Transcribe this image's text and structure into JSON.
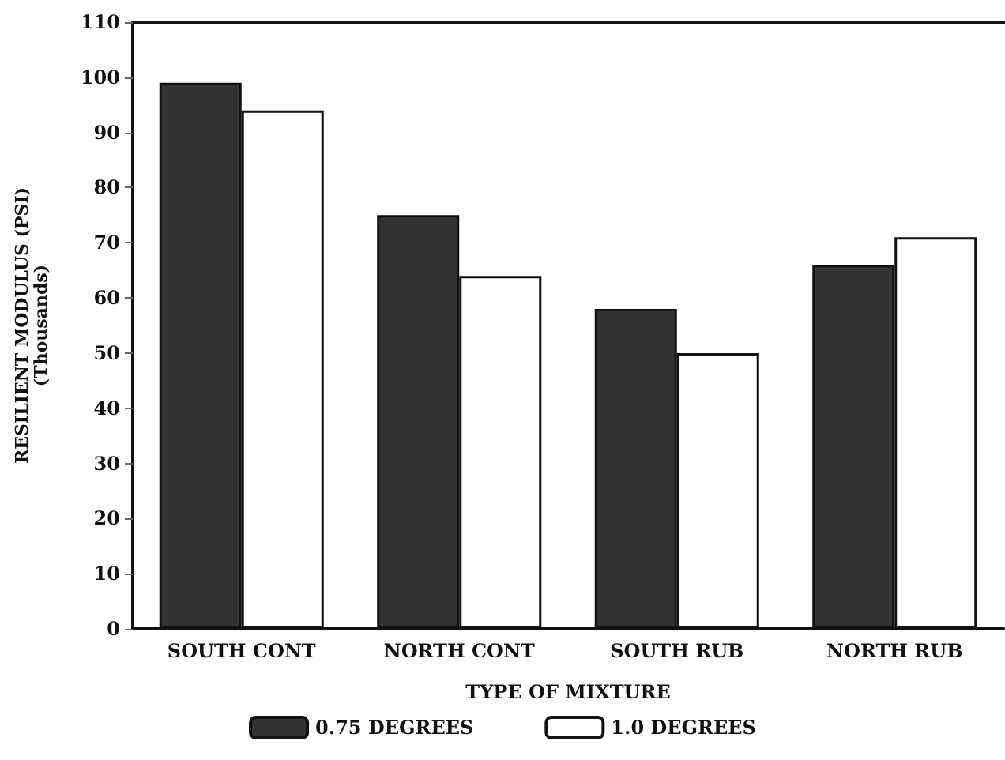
{
  "chart_data": {
    "type": "bar",
    "xlabel": "TYPE OF MIXTURE",
    "ylabel": "RESILIENT MODULUS (PSI)\n(Thousands)",
    "categories": [
      "SOUTH CONT",
      "NORTH CONT",
      "SOUTH RUB",
      "NORTH RUB"
    ],
    "series": [
      {
        "name": "0.75 DEGREES",
        "color": "#333333",
        "values": [
          99,
          75,
          58,
          66
        ]
      },
      {
        "name": "1.0 DEGREES",
        "color": "#ffffff",
        "values": [
          94,
          64,
          50,
          71
        ]
      }
    ],
    "ylim": [
      0,
      110
    ],
    "yticks": [
      0,
      10,
      20,
      30,
      40,
      50,
      60,
      70,
      80,
      90,
      100,
      110
    ],
    "grid": false,
    "legend": "bottom"
  }
}
